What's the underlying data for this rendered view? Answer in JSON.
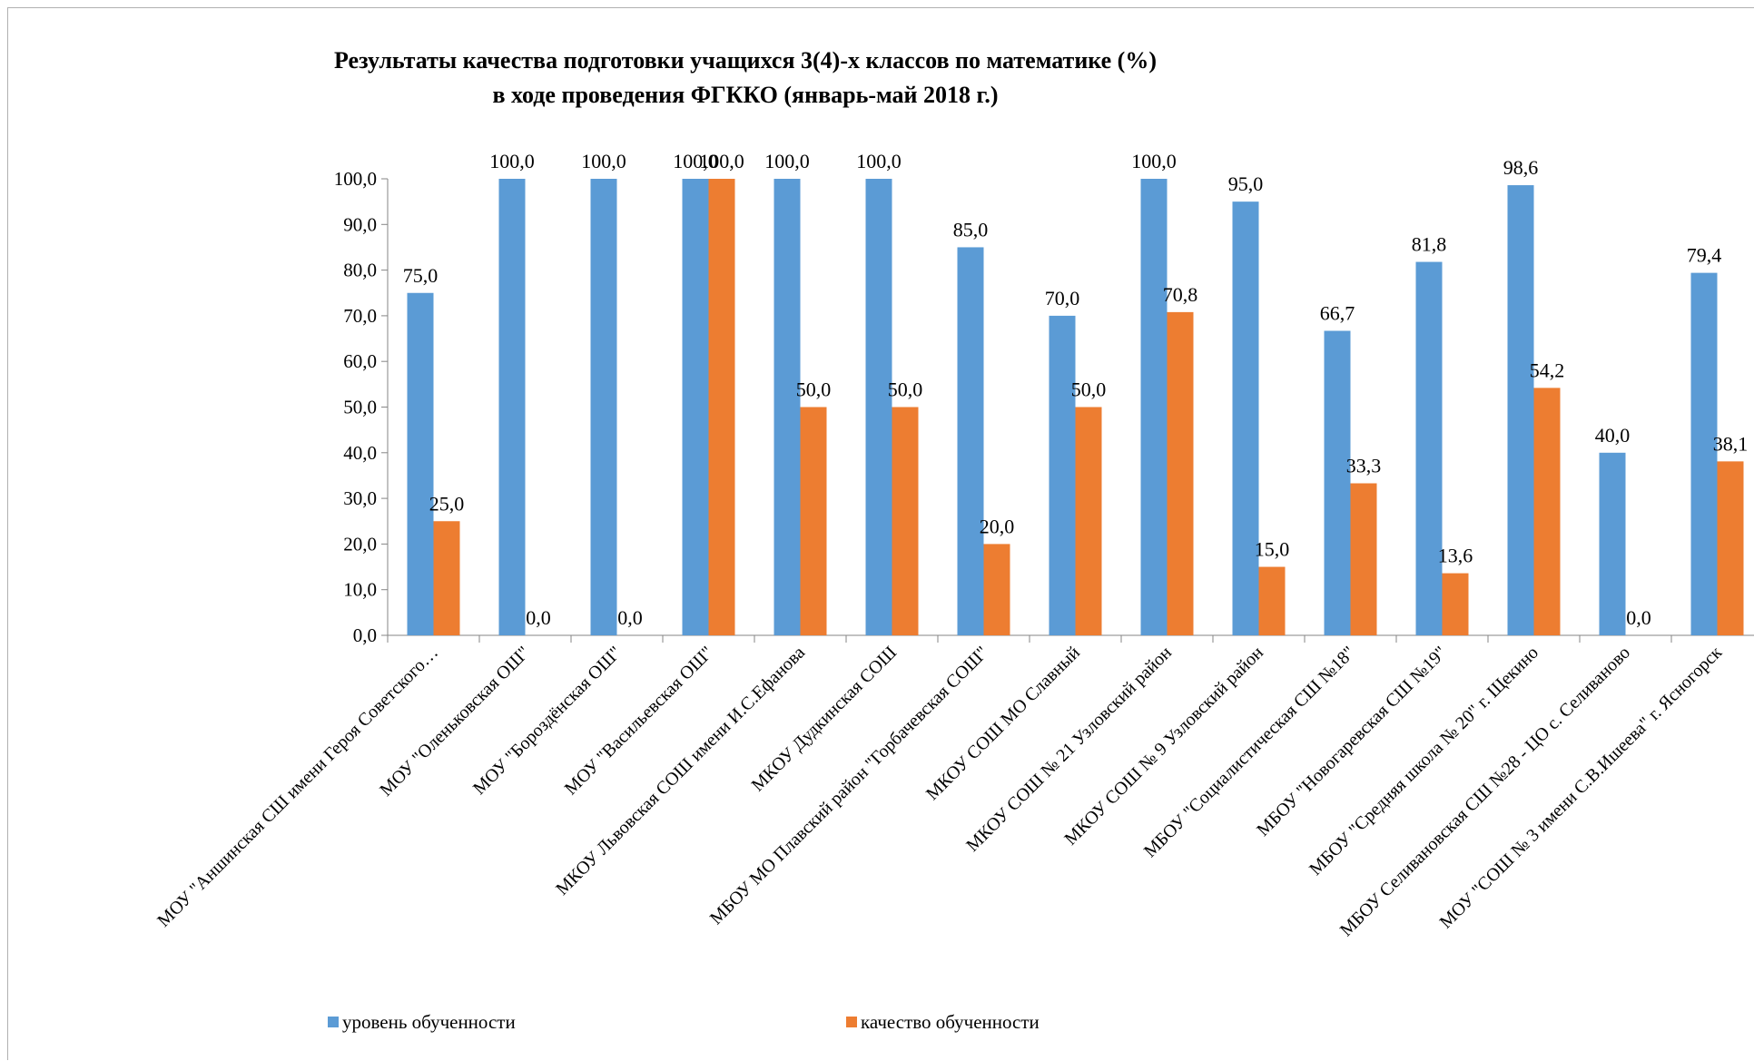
{
  "chart_data": {
    "type": "bar",
    "title": "Результаты качества подготовки учащихся 3(4)-х классов по математике (%)",
    "subtitle": "в ходе проведения ФГККО (январь-май 2018 г.)",
    "categories": [
      "МОУ \"Аншинская СШ   имени Героя Советского…",
      "МОУ \"Оленьковская ОШ\"",
      "МОУ \"Бороздёнская ОШ\"",
      "МОУ \"Васильевская ОШ\"",
      "МКОУ Львовская СОШ имени И.С.Ефанова",
      "МКОУ Дудкинская  СОШ",
      "МБОУ МО Плавский район \"Горбачевская СОШ\"",
      "МКОУ СОШ МО Славный",
      "МКОУ СОШ № 21 Узловский район",
      "МКОУ СОШ № 9 Узловский район",
      "МБОУ \"Социалистическая СШ №18\"",
      "МБОУ \"Новогаревская СШ №19\"",
      "МБОУ \"Средняя школа № 20\" г. Щекино",
      "МБОУ Селивановская СШ №28  - ЦО с. Селиваново",
      "МОУ \"СОШ № 3 имени С.В.Ишеева\" г. Ясногорск"
    ],
    "series": [
      {
        "name": "уровень обученности",
        "color": "#5b9bd5",
        "values": [
          75.0,
          100.0,
          100.0,
          100.0,
          100.0,
          100.0,
          85.0,
          70.0,
          100.0,
          95.0,
          66.7,
          81.8,
          98.6,
          40.0,
          79.4
        ],
        "labels": [
          "75,0",
          "100,0",
          "100,0",
          "100,0",
          "100,0",
          "100,0",
          "85,0",
          "70,0",
          "100,0",
          "95,0",
          "66,7",
          "81,8",
          "98,6",
          "40,0",
          "79,4"
        ]
      },
      {
        "name": "качество обученности",
        "color": "#ed7d31",
        "values": [
          25.0,
          0.0,
          0.0,
          100.0,
          50.0,
          50.0,
          20.0,
          50.0,
          70.8,
          15.0,
          33.3,
          13.6,
          54.2,
          0.0,
          38.1
        ],
        "labels": [
          "25,0",
          "0,0",
          "0,0",
          "100,0",
          "50,0",
          "50,0",
          "20,0",
          "50,0",
          "70,8",
          "15,0",
          "33,3",
          "13,6",
          "54,2",
          "0,0",
          "38,1"
        ]
      }
    ],
    "yticks": [
      "0,0",
      "10,0",
      "20,0",
      "30,0",
      "40,0",
      "50,0",
      "60,0",
      "70,0",
      "80,0",
      "90,0",
      "100,0"
    ],
    "ylim": [
      0,
      100
    ],
    "grid": false,
    "legend_position": "bottom"
  }
}
